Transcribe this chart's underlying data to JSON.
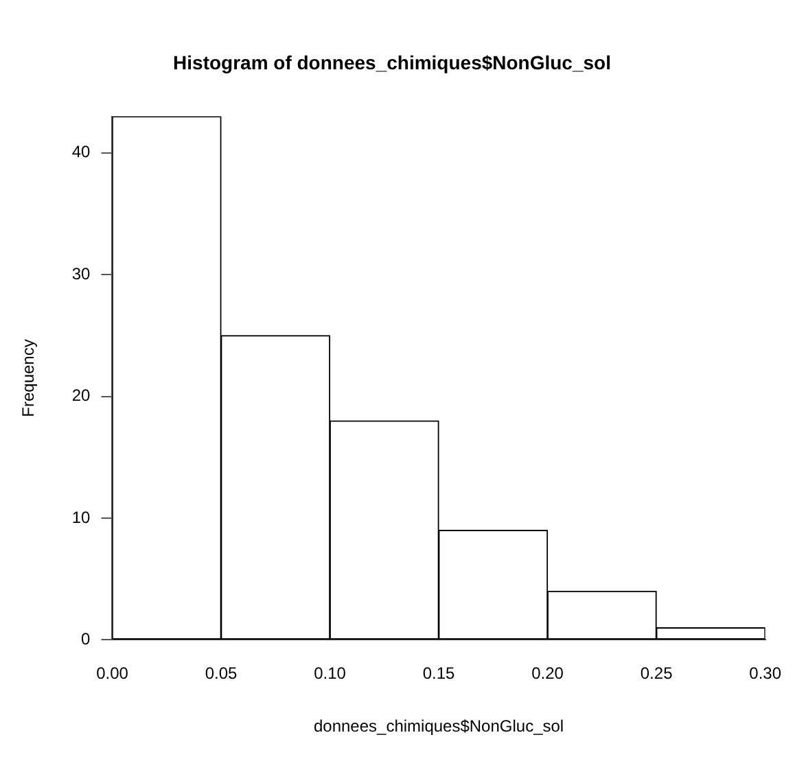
{
  "chart_data": {
    "type": "histogram",
    "title": "Histogram of donnees_chimiques$NonGluc_sol",
    "xlabel": "donnees_chimiques$NonGluc_sol",
    "ylabel": "Frequency",
    "bins": [
      0,
      0.05,
      0.1,
      0.15,
      0.2,
      0.25,
      0.3
    ],
    "values": [
      43,
      25,
      18,
      9,
      4,
      1
    ],
    "color": "#ffffff",
    "xlim": [
      0,
      0.3
    ],
    "xticks": [
      {
        "value": 0,
        "label": "0.00"
      },
      {
        "value": 0.05,
        "label": "0.05"
      },
      {
        "value": 0.1,
        "label": "0.10"
      },
      {
        "value": 0.15,
        "label": "0.15"
      },
      {
        "value": 0.2,
        "label": "0.20"
      },
      {
        "value": 0.25,
        "label": "0.25"
      },
      {
        "value": 0.3,
        "label": "0.30"
      }
    ],
    "ylim": [
      0,
      43
    ],
    "yticks": [
      0,
      10,
      20,
      30,
      40
    ],
    "grid": false,
    "legend": false
  }
}
